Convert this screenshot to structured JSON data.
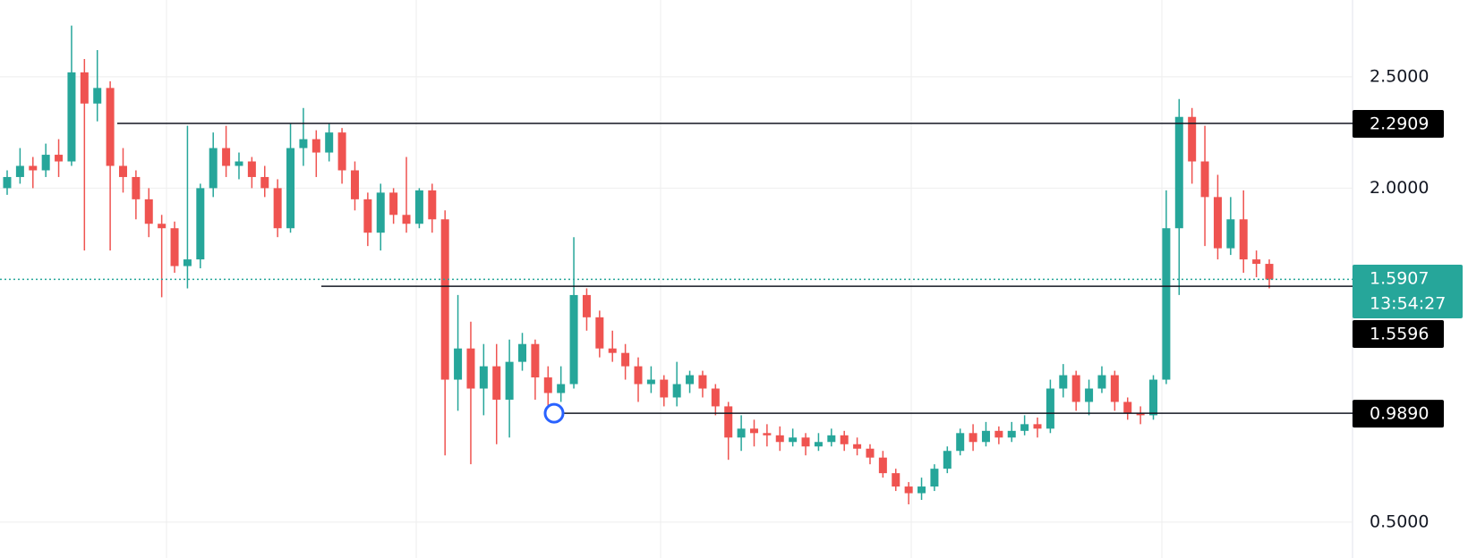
{
  "chart_data": {
    "type": "candlestick",
    "up_color": "#26a69a",
    "down_color": "#ef5350",
    "ylim": [
      0.339,
      2.845
    ],
    "yticks": [
      {
        "value": 2.5,
        "label": "2.5000"
      },
      {
        "value": 2.0,
        "label": "2.0000"
      },
      {
        "value": 0.5,
        "label": "0.5000"
      }
    ],
    "grid": true,
    "levels": [
      {
        "value": 2.2909,
        "label": "2.2909"
      },
      {
        "value": 1.5596,
        "label": "1.5596"
      },
      {
        "value": 0.989,
        "label": "0.9890"
      }
    ],
    "last_price": 1.5907,
    "countdown": "13:54:27",
    "candles": [
      [
        2.0,
        2.08,
        1.97,
        2.05
      ],
      [
        2.05,
        2.18,
        2.02,
        2.1
      ],
      [
        2.1,
        2.14,
        2.0,
        2.08
      ],
      [
        2.08,
        2.2,
        2.05,
        2.15
      ],
      [
        2.15,
        2.22,
        2.05,
        2.12
      ],
      [
        2.12,
        2.73,
        2.1,
        2.52
      ],
      [
        2.52,
        2.58,
        1.72,
        2.38
      ],
      [
        2.38,
        2.62,
        2.3,
        2.45
      ],
      [
        2.45,
        2.48,
        1.72,
        2.1
      ],
      [
        2.1,
        2.18,
        1.98,
        2.05
      ],
      [
        2.05,
        2.08,
        1.86,
        1.95
      ],
      [
        1.95,
        2.0,
        1.78,
        1.84
      ],
      [
        1.84,
        1.88,
        1.51,
        1.82
      ],
      [
        1.82,
        1.85,
        1.62,
        1.65
      ],
      [
        1.65,
        2.28,
        1.55,
        1.68
      ],
      [
        1.68,
        2.02,
        1.64,
        2.0
      ],
      [
        2.0,
        2.25,
        1.96,
        2.18
      ],
      [
        2.18,
        2.28,
        2.05,
        2.1
      ],
      [
        2.1,
        2.16,
        2.04,
        2.12
      ],
      [
        2.12,
        2.14,
        2.0,
        2.05
      ],
      [
        2.05,
        2.1,
        1.96,
        2.0
      ],
      [
        2.0,
        2.04,
        1.78,
        1.82
      ],
      [
        1.82,
        2.29,
        1.8,
        2.18
      ],
      [
        2.18,
        2.36,
        2.1,
        2.22
      ],
      [
        2.22,
        2.26,
        2.05,
        2.16
      ],
      [
        2.16,
        2.29,
        2.12,
        2.25
      ],
      [
        2.25,
        2.27,
        2.02,
        2.08
      ],
      [
        2.08,
        2.12,
        1.9,
        1.95
      ],
      [
        1.95,
        1.98,
        1.74,
        1.8
      ],
      [
        1.8,
        2.02,
        1.72,
        1.98
      ],
      [
        1.98,
        2.0,
        1.84,
        1.88
      ],
      [
        1.88,
        2.14,
        1.8,
        1.84
      ],
      [
        1.84,
        2.0,
        1.82,
        1.99
      ],
      [
        1.99,
        2.02,
        1.8,
        1.86
      ],
      [
        1.86,
        1.9,
        0.8,
        1.14
      ],
      [
        1.14,
        1.52,
        1.0,
        1.28
      ],
      [
        1.28,
        1.4,
        0.76,
        1.1
      ],
      [
        1.1,
        1.3,
        0.98,
        1.2
      ],
      [
        1.2,
        1.3,
        0.85,
        1.05
      ],
      [
        1.05,
        1.32,
        0.88,
        1.22
      ],
      [
        1.22,
        1.35,
        1.18,
        1.3
      ],
      [
        1.3,
        1.32,
        1.05,
        1.15
      ],
      [
        1.15,
        1.2,
        1.0,
        1.08
      ],
      [
        1.08,
        1.2,
        1.04,
        1.12
      ],
      [
        1.12,
        1.78,
        1.1,
        1.52
      ],
      [
        1.52,
        1.55,
        1.36,
        1.42
      ],
      [
        1.42,
        1.45,
        1.24,
        1.28
      ],
      [
        1.28,
        1.36,
        1.22,
        1.26
      ],
      [
        1.26,
        1.3,
        1.14,
        1.2
      ],
      [
        1.2,
        1.24,
        1.04,
        1.12
      ],
      [
        1.12,
        1.2,
        1.08,
        1.14
      ],
      [
        1.14,
        1.16,
        1.02,
        1.06
      ],
      [
        1.06,
        1.22,
        1.02,
        1.12
      ],
      [
        1.12,
        1.18,
        1.08,
        1.16
      ],
      [
        1.16,
        1.18,
        1.06,
        1.1
      ],
      [
        1.1,
        1.12,
        0.98,
        1.02
      ],
      [
        1.02,
        1.04,
        0.78,
        0.88
      ],
      [
        0.88,
        0.98,
        0.82,
        0.92
      ],
      [
        0.92,
        0.96,
        0.84,
        0.9
      ],
      [
        0.9,
        0.94,
        0.84,
        0.89
      ],
      [
        0.89,
        0.93,
        0.82,
        0.86
      ],
      [
        0.86,
        0.92,
        0.84,
        0.88
      ],
      [
        0.88,
        0.9,
        0.8,
        0.84
      ],
      [
        0.84,
        0.9,
        0.82,
        0.86
      ],
      [
        0.86,
        0.92,
        0.84,
        0.89
      ],
      [
        0.89,
        0.91,
        0.82,
        0.85
      ],
      [
        0.85,
        0.88,
        0.8,
        0.83
      ],
      [
        0.83,
        0.85,
        0.76,
        0.79
      ],
      [
        0.79,
        0.82,
        0.7,
        0.72
      ],
      [
        0.72,
        0.74,
        0.64,
        0.66
      ],
      [
        0.66,
        0.68,
        0.58,
        0.63
      ],
      [
        0.63,
        0.7,
        0.6,
        0.66
      ],
      [
        0.66,
        0.76,
        0.64,
        0.74
      ],
      [
        0.74,
        0.84,
        0.72,
        0.82
      ],
      [
        0.82,
        0.92,
        0.8,
        0.9
      ],
      [
        0.9,
        0.94,
        0.82,
        0.86
      ],
      [
        0.86,
        0.95,
        0.84,
        0.91
      ],
      [
        0.91,
        0.93,
        0.85,
        0.88
      ],
      [
        0.88,
        0.95,
        0.86,
        0.91
      ],
      [
        0.91,
        0.98,
        0.89,
        0.94
      ],
      [
        0.94,
        0.97,
        0.88,
        0.92
      ],
      [
        0.92,
        1.14,
        0.9,
        1.1
      ],
      [
        1.1,
        1.21,
        1.06,
        1.16
      ],
      [
        1.16,
        1.18,
        1.0,
        1.04
      ],
      [
        1.04,
        1.14,
        0.98,
        1.1
      ],
      [
        1.1,
        1.2,
        1.08,
        1.16
      ],
      [
        1.16,
        1.18,
        1.0,
        1.04
      ],
      [
        1.04,
        1.06,
        0.96,
        0.99
      ],
      [
        0.99,
        1.02,
        0.94,
        0.98
      ],
      [
        0.98,
        1.16,
        0.96,
        1.14
      ],
      [
        1.14,
        1.99,
        1.12,
        1.82
      ],
      [
        1.82,
        2.4,
        1.52,
        2.32
      ],
      [
        2.32,
        2.36,
        2.02,
        2.12
      ],
      [
        2.12,
        2.28,
        1.74,
        1.96
      ],
      [
        1.96,
        2.06,
        1.68,
        1.73
      ],
      [
        1.73,
        1.96,
        1.7,
        1.86
      ],
      [
        1.86,
        1.99,
        1.62,
        1.68
      ],
      [
        1.68,
        1.72,
        1.6,
        1.66
      ],
      [
        1.66,
        1.68,
        1.55,
        1.59
      ]
    ]
  }
}
